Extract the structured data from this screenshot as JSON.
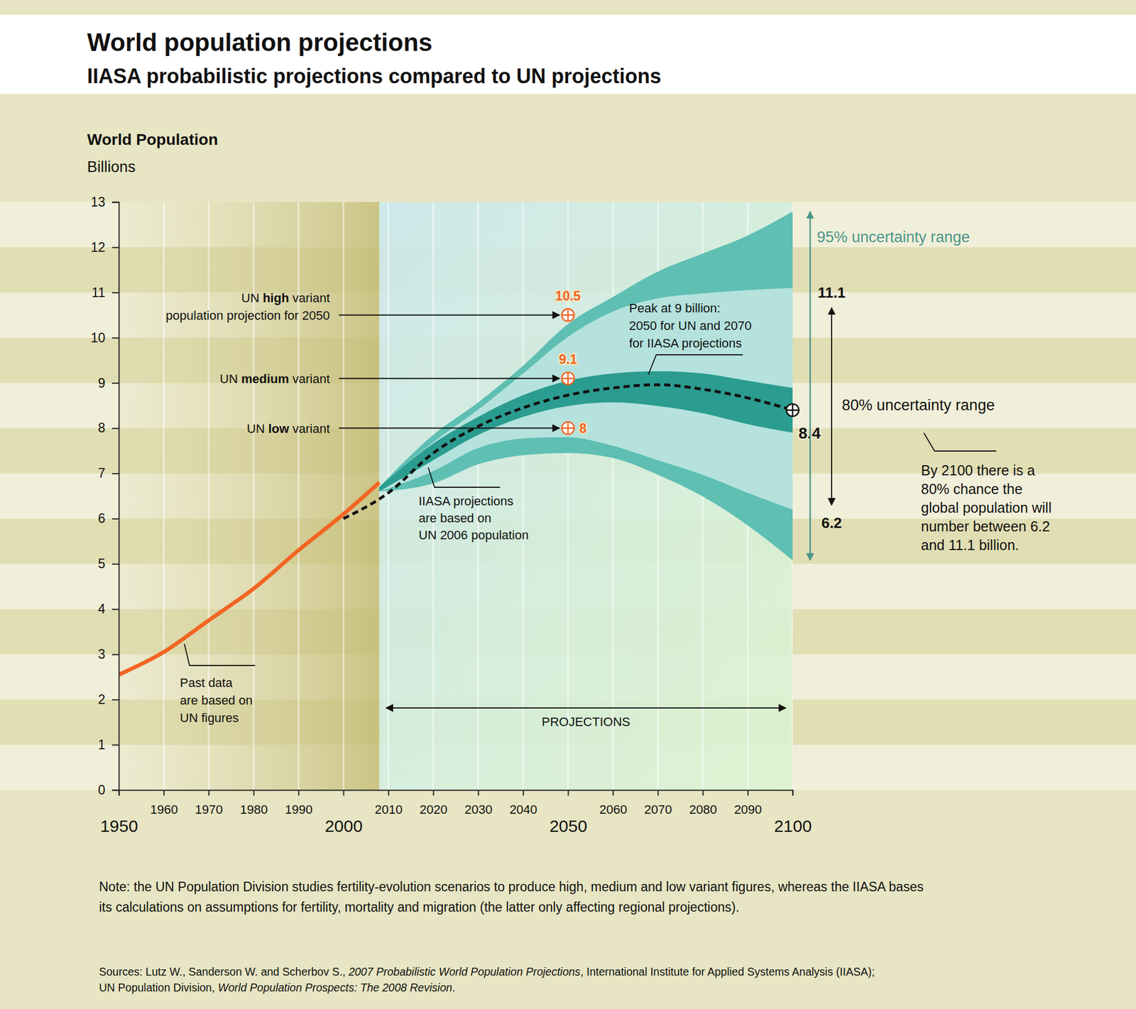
{
  "chart_data": {
    "type": "line",
    "title": "World population projections",
    "subtitle": "IIASA probabilistic projections compared to UN projections",
    "ylabel": "World Population",
    "ylabel_units": "Billions",
    "xlim": [
      1950,
      2100
    ],
    "xticks": [
      1950,
      1960,
      1970,
      1980,
      1990,
      2000,
      2010,
      2020,
      2030,
      2040,
      2050,
      2060,
      2070,
      2080,
      2090,
      2100
    ],
    "ylim": [
      0,
      13
    ],
    "yticks": [
      0,
      1,
      2,
      3,
      4,
      5,
      6,
      7,
      8,
      9,
      10,
      11,
      12,
      13
    ],
    "grid": true,
    "regions": [
      {
        "x": [
          1950,
          2008
        ]
      },
      {
        "x": [
          2008,
          2100
        ],
        "label": "PROJECTIONS"
      }
    ],
    "series": [
      {
        "type": "line",
        "color": "#f26522",
        "x": [
          1950,
          1960,
          1970,
          1980,
          1990,
          2000,
          2008
        ],
        "values": [
          2.55,
          3.05,
          3.75,
          4.45,
          5.3,
          6.1,
          6.8
        ]
      },
      {
        "name": "95% uncertainty range",
        "type": "band",
        "color": "#5fbfb3",
        "x": [
          2008,
          2020,
          2030,
          2040,
          2050,
          2060,
          2070,
          2080,
          2090,
          2100
        ],
        "lower": [
          6.6,
          6.78,
          7.2,
          7.4,
          7.45,
          7.34,
          6.97,
          6.49,
          5.85,
          5.08
        ],
        "values": [
          6.7,
          7.85,
          8.57,
          9.38,
          10.3,
          10.9,
          11.46,
          11.86,
          12.26,
          12.79
        ]
      },
      {
        "name": "80% uncertainty range",
        "type": "band",
        "color": "#b5e2dd",
        "data_labels": true,
        "x": [
          2008,
          2020,
          2030,
          2040,
          2050,
          2060,
          2070,
          2080,
          2090,
          2100
        ],
        "lower": [
          6.6,
          7.05,
          7.56,
          7.77,
          7.8,
          7.61,
          7.29,
          6.97,
          6.57,
          6.2
        ],
        "values": [
          6.7,
          7.69,
          8.41,
          9.21,
          10.02,
          10.58,
          10.87,
          10.98,
          11.05,
          11.1
        ]
      },
      {
        "type": "band",
        "color": "#2b9c90",
        "x": [
          2008,
          2020,
          2030,
          2040,
          2050,
          2060,
          2070,
          2080,
          2090,
          2100
        ],
        "lower": [
          6.6,
          7.29,
          7.85,
          8.25,
          8.49,
          8.57,
          8.49,
          8.33,
          8.09,
          7.9
        ],
        "values": [
          6.7,
          7.66,
          8.25,
          8.73,
          9.05,
          9.21,
          9.26,
          9.21,
          9.05,
          8.89
        ]
      },
      {
        "type": "line",
        "color": "#111111",
        "line_style": "dashed",
        "x": [
          2000,
          2010,
          2020,
          2030,
          2040,
          2050,
          2060,
          2070,
          2080,
          2090,
          2100
        ],
        "values": [
          6.0,
          6.57,
          7.45,
          8.04,
          8.45,
          8.73,
          8.89,
          8.96,
          8.86,
          8.67,
          8.4
        ]
      },
      {
        "type": "scatter",
        "color": "#f26522",
        "marker": "circle-plus",
        "data_labels": true,
        "x": [
          2050,
          2050,
          2050
        ],
        "values": [
          10.5,
          9.1,
          8
        ]
      },
      {
        "type": "scatter",
        "color": "#111111",
        "marker": "circle-plus",
        "data_labels": true,
        "x": [
          2100
        ],
        "values": [
          8.4
        ]
      }
    ],
    "annotations": [
      {
        "lines": [
          [
            "UN ",
            {
              "text": "high",
              "style": "bold"
            },
            " variant"
          ],
          [
            "population projection for 2050"
          ]
        ]
      },
      {
        "lines": [
          [
            "UN ",
            {
              "text": "medium",
              "style": "bold"
            },
            " variant"
          ]
        ]
      },
      {
        "lines": [
          [
            "UN ",
            {
              "text": "low",
              "style": "bold"
            },
            " variant"
          ]
        ]
      },
      {
        "lines": [
          "Peak at 9 billion:",
          "2050 for UN and 2070",
          "for IIASA projections"
        ]
      },
      {
        "lines": [
          "IIASA projections",
          "are based on",
          "UN 2006 population"
        ]
      },
      {
        "lines": [
          "Past data",
          "are based on",
          "UN figures"
        ]
      },
      {
        "lines": [
          "By 2100 there is a",
          "80% chance the",
          "global population will",
          "number between 6.2",
          "and 11.1 billion."
        ]
      }
    ],
    "note": [
      "Note: the UN Population Division studies fertility-evolution scenarios to produce high, medium and low variant figures, whereas the IIASA bases",
      "its calculations on assumptions for fertility, mortality and migration (the latter only affecting regional projections)."
    ],
    "source": [
      [
        "Sources: Lutz W., Sanderson W. and Scherbov S., ",
        {
          "text": "2007 Probabilistic World Population Projections",
          "style": "italic"
        },
        ", International Institute for Applied Systems Analysis (IIASA);"
      ],
      [
        "UN Population Division, ",
        {
          "text": "World Population Prospects: The 2008 Revision",
          "style": "italic"
        },
        "."
      ]
    ]
  }
}
